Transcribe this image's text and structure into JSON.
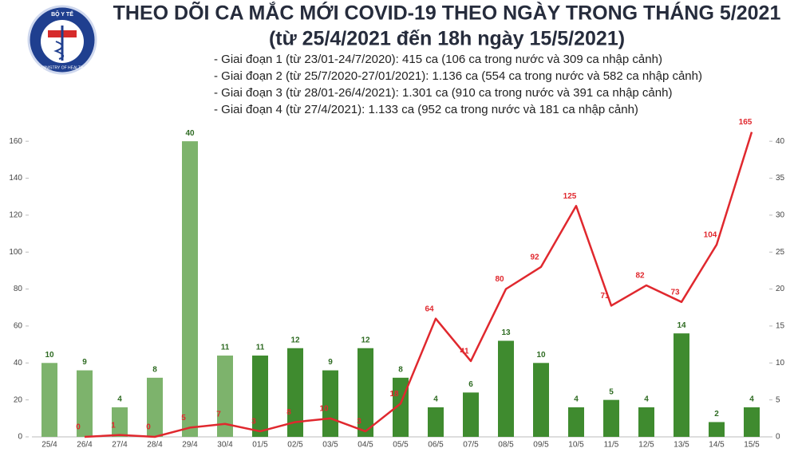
{
  "logo": {
    "top": "BỘ Y TẾ",
    "bottom": "MINISTRY OF HEALTH"
  },
  "chart_data": {
    "type": "bar-line",
    "title": "THEO DÕI CA MẮC MỚI COVID-19 THEO NGÀY TRONG THÁNG 5/2021",
    "subtitle": "(từ 25/4/2021 đến 18h ngày 15/5/2021)",
    "notes": [
      "- Giai đoạn 1 (từ 23/01-24/7/2020): 415 ca (106 ca trong nước và 309 ca nhập cảnh)",
      "- Giai đoạn 2 (từ 25/7/2020-27/01/2021): 1.136 ca (554 ca trong nước và 582 ca nhập cảnh)",
      "- Giai đoạn 3 (từ 28/01-26/4/2021): 1.301 ca (910 ca trong nước và 391 ca nhập cảnh)",
      "- Giai đoạn 4 (từ 27/4/2021): 1.133 ca (952 ca trong nước và 181 ca nhập cảnh)"
    ],
    "categories": [
      "25/4",
      "26/4",
      "27/4",
      "28/4",
      "29/4",
      "30/4",
      "01/5",
      "02/5",
      "03/5",
      "04/5",
      "05/5",
      "06/5",
      "07/5",
      "08/5",
      "09/5",
      "10/5",
      "11/5",
      "12/5",
      "13/5",
      "14/5",
      "15/5"
    ],
    "series": [
      {
        "type": "bar",
        "axis": "y2",
        "color": "#3f8b2f",
        "label_color": "#2e6b22",
        "colors": [
          "#7db36c",
          "#7db36c",
          "#7db36c",
          "#7db36c",
          "#7db36c",
          "#7db36c",
          "#3f8b2f",
          "#3f8b2f",
          "#3f8b2f",
          "#3f8b2f",
          "#3f8b2f",
          "#3f8b2f",
          "#3f8b2f",
          "#3f8b2f",
          "#3f8b2f",
          "#3f8b2f",
          "#3f8b2f",
          "#3f8b2f",
          "#3f8b2f",
          "#3f8b2f",
          "#3f8b2f"
        ],
        "values": [
          10,
          9,
          4,
          8,
          40,
          11,
          11,
          12,
          9,
          12,
          8,
          4,
          6,
          13,
          10,
          4,
          5,
          4,
          14,
          2,
          4
        ]
      },
      {
        "type": "line",
        "color": "#e0282e",
        "values": [
          null,
          0,
          1,
          0,
          5,
          7,
          3,
          8,
          10,
          3,
          18,
          64,
          41,
          80,
          92,
          125,
          71,
          82,
          73,
          104,
          165
        ]
      }
    ],
    "ylim": [
      0,
      170
    ],
    "yticks": [
      0,
      20,
      40,
      60,
      80,
      100,
      120,
      140,
      160
    ],
    "y2lim": [
      0,
      42.5
    ],
    "y2ticks": [
      0,
      5,
      10,
      15,
      20,
      25,
      30,
      35,
      40
    ]
  }
}
